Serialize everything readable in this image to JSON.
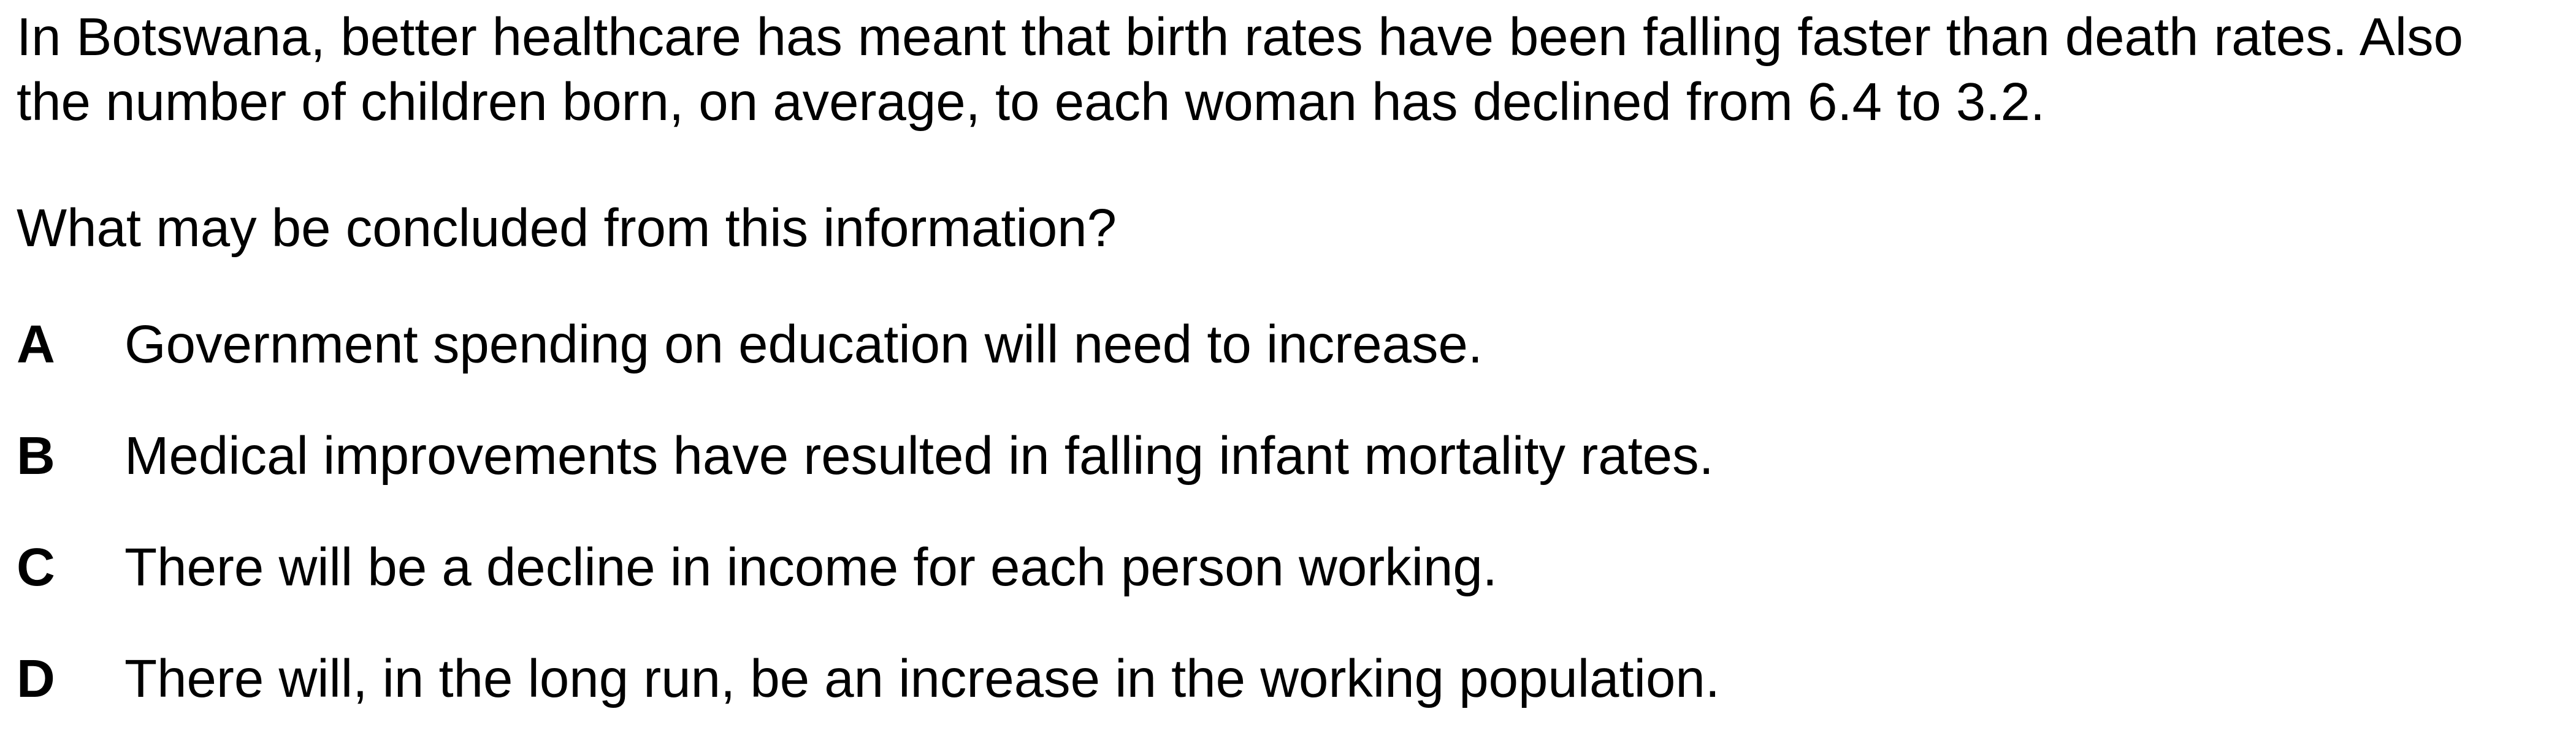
{
  "question": {
    "stem": "In Botswana, better healthcare has meant that birth rates have been falling faster than death rates. Also the number of children born, on average, to each woman has declined from 6.4 to 3.2.",
    "prompt": "What may be concluded from this information?",
    "options": [
      {
        "letter": "A",
        "text": "Government spending on education will need to increase."
      },
      {
        "letter": "B",
        "text": "Medical improvements have resulted in falling infant mortality rates."
      },
      {
        "letter": "C",
        "text": "There will be a decline in income for each person working."
      },
      {
        "letter": "D",
        "text": "There will, in the long run, be an increase in the working population."
      }
    ]
  }
}
